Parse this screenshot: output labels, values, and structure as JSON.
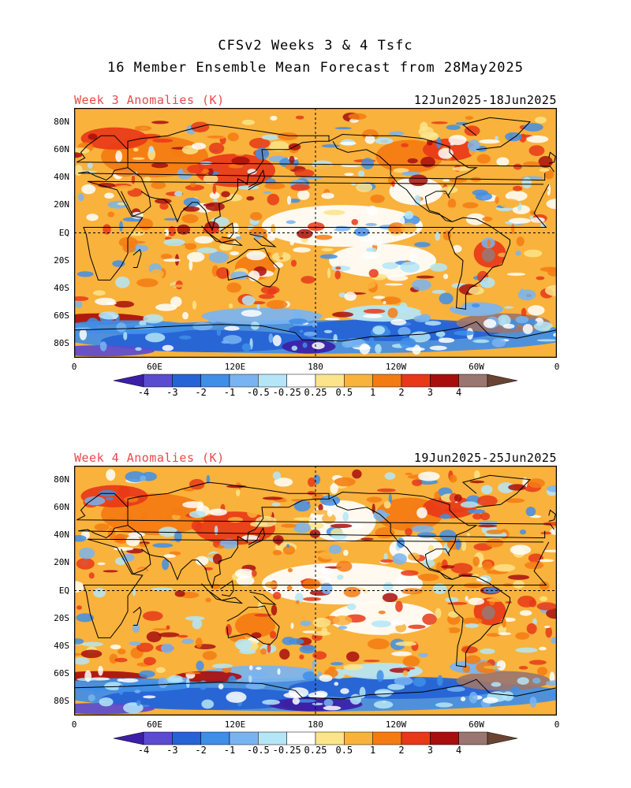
{
  "header": {
    "title_line1": "CFSv2 Weeks 3 & 4 Tsfc",
    "title_line2": "16 Member Ensemble Mean Forecast from 28May2025"
  },
  "panels": [
    {
      "label": "Week 3 Anomalies (K)",
      "dates": "12Jun2025-18Jun2025"
    },
    {
      "label": "Week 4 Anomalies (K)",
      "dates": "19Jun2025-25Jun2025"
    }
  ],
  "axes": {
    "lat_ticks": [
      "80N",
      "60N",
      "40N",
      "20N",
      "EQ",
      "20S",
      "40S",
      "60S",
      "80S"
    ],
    "lon_ticks": [
      "0",
      "60E",
      "120E",
      "180",
      "120W",
      "60W",
      "0"
    ]
  },
  "colorbar": {
    "labels": [
      "-4",
      "-3",
      "-2",
      "-1",
      "-0.5",
      "-0.25",
      "0.25",
      "0.5",
      "1",
      "2",
      "3",
      "4"
    ],
    "colors": [
      "#3c1fa6",
      "#5a4bd0",
      "#2563d6",
      "#3f8ee8",
      "#78b4f2",
      "#b4e6f8",
      "#ffffff",
      "#fce48a",
      "#f9b23c",
      "#f47b12",
      "#e83818",
      "#a80e0e",
      "#9a7670",
      "#6a4432"
    ]
  }
}
